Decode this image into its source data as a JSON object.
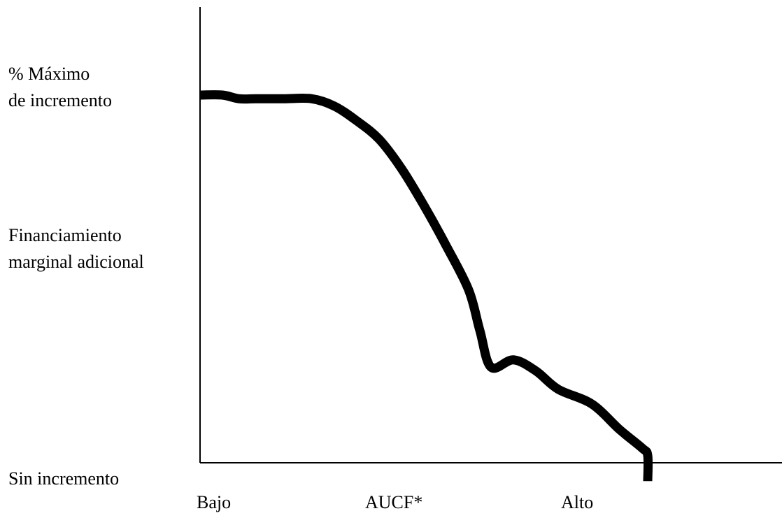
{
  "chart_data": {
    "type": "line",
    "title": "",
    "xlabel": "",
    "ylabel": "",
    "x_tick_labels": [
      "Bajo",
      "AUCF*",
      "Alto"
    ],
    "y_labels": {
      "top_line1": "% Máximo",
      "top_line2": "de incremento",
      "middle_line1": "Financiamiento",
      "middle_line2": "marginal adicional",
      "bottom": "Sin incremento"
    },
    "grid": false,
    "legend": "none",
    "line_color": "#000000",
    "axis_color": "#000000",
    "xlim": [
      0,
      1
    ],
    "ylim": [
      0,
      1
    ],
    "series": [
      {
        "x": [
          0.0,
          0.04,
          0.07,
          0.1,
          0.15,
          0.2,
          0.24,
          0.28,
          0.32,
          0.36,
          0.4,
          0.44,
          0.48,
          0.52,
          0.54,
          0.55,
          0.56,
          0.58,
          0.62,
          0.66,
          0.69,
          0.72,
          0.76,
          0.79,
          0.8,
          0.8
        ],
        "y": [
          1.0,
          1.0,
          0.99,
          0.99,
          0.99,
          0.99,
          0.97,
          0.93,
          0.88,
          0.8,
          0.7,
          0.59,
          0.47,
          0.36,
          0.26,
          0.18,
          0.34,
          0.24,
          0.25,
          0.22,
          0.17,
          0.16,
          0.09,
          0.05,
          0.03,
          -0.05
        ]
      }
    ]
  }
}
